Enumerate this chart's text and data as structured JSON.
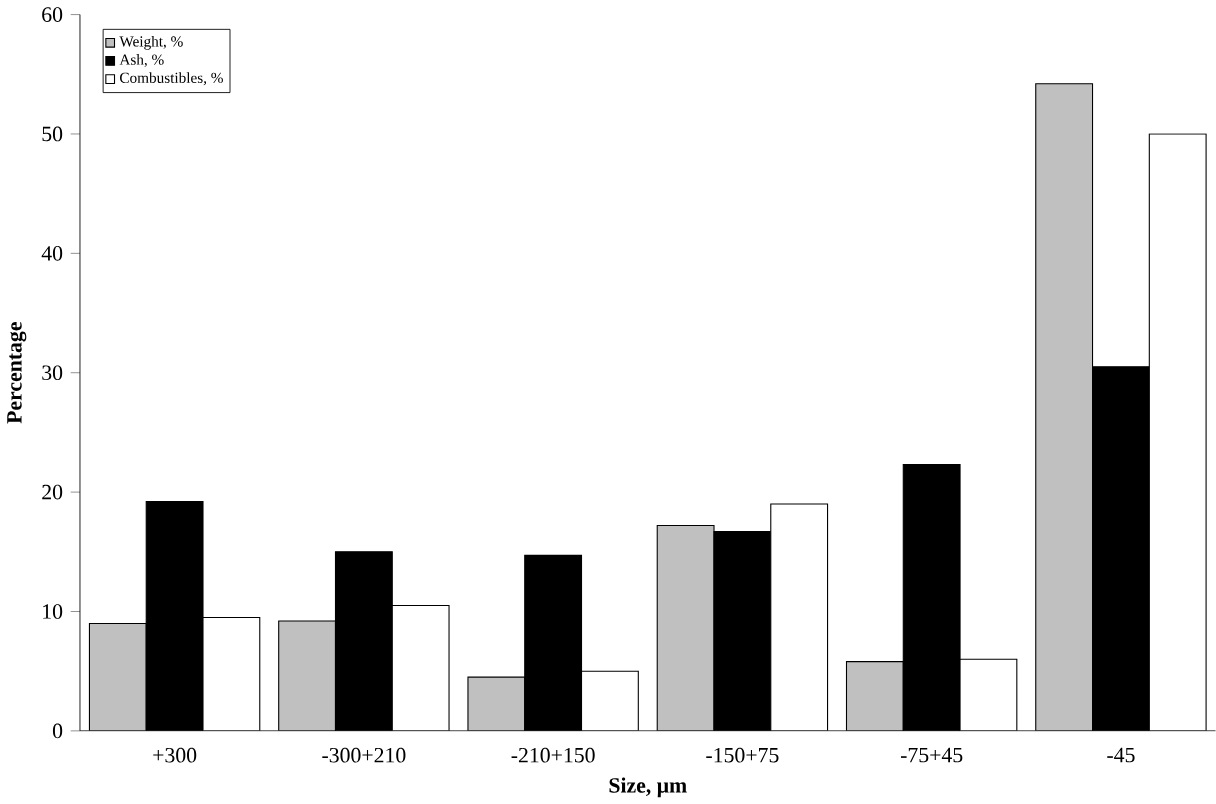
{
  "chart_data": {
    "type": "bar",
    "xlabel": "Size, μm",
    "ylabel": "Percentage",
    "categories": [
      "+300",
      "-300+210",
      "-210+150",
      "-150+75",
      "-75+45",
      "-45"
    ],
    "series": [
      {
        "name": "Weight, %",
        "color": "#c0c0c0",
        "values": [
          9.0,
          9.2,
          4.5,
          17.2,
          5.8,
          54.2
        ]
      },
      {
        "name": "Ash, %",
        "color": "#000000",
        "values": [
          19.2,
          15.0,
          14.7,
          16.7,
          22.3,
          30.5
        ]
      },
      {
        "name": "Combustibles, %",
        "color": "#ffffff",
        "values": [
          9.5,
          10.5,
          5.0,
          19.0,
          6.0,
          50.0
        ]
      }
    ],
    "ylim": [
      0,
      60
    ],
    "yticks": [
      0,
      10,
      20,
      30,
      40,
      50,
      60
    ],
    "legend": "top left",
    "grid": false
  }
}
